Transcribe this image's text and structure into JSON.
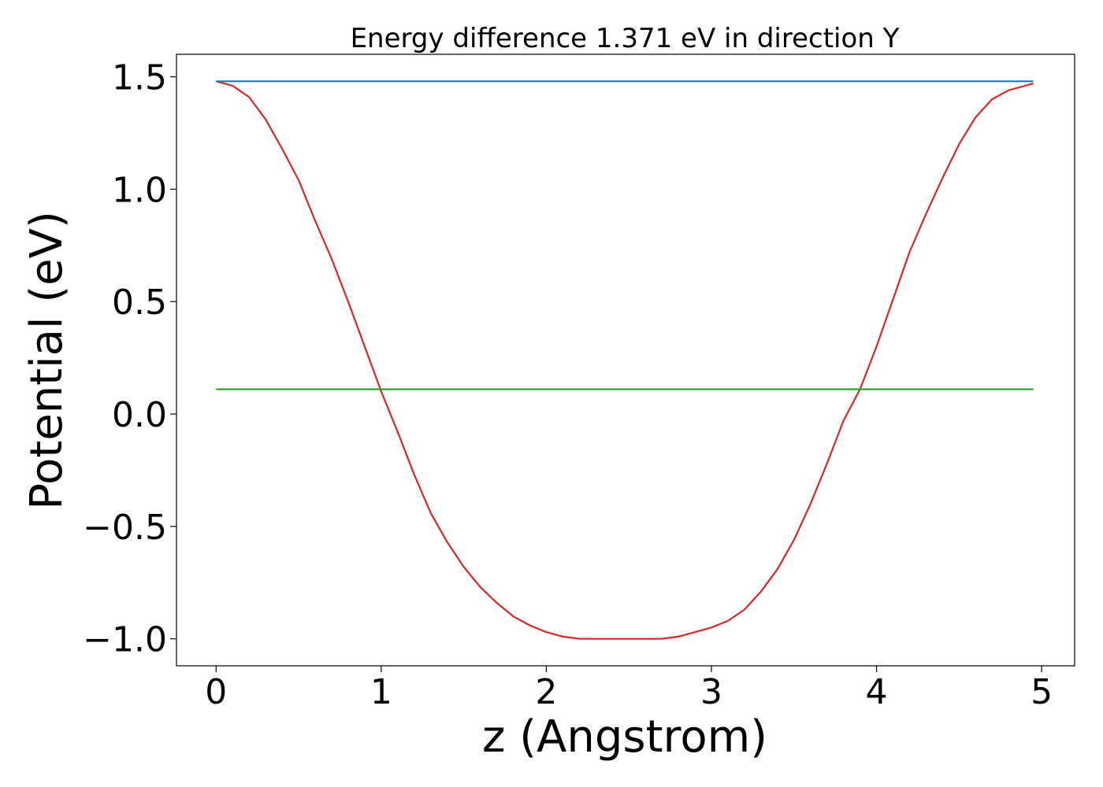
{
  "chart_data": {
    "type": "line",
    "title": "Energy difference 1.371 eV in direction Y",
    "xlabel": "z (Angstrom)",
    "ylabel": "Potential (eV)",
    "xlim": [
      -0.24,
      5.2
    ],
    "ylim": [
      -1.12,
      1.6
    ],
    "xticks": [
      {
        "value": 0,
        "label": "0"
      },
      {
        "value": 1,
        "label": "1"
      },
      {
        "value": 2,
        "label": "2"
      },
      {
        "value": 3,
        "label": "3"
      },
      {
        "value": 4,
        "label": "4"
      },
      {
        "value": 5,
        "label": "5"
      }
    ],
    "yticks": [
      {
        "value": 1.5,
        "label": "1.5"
      },
      {
        "value": 1.0,
        "label": "1.0"
      },
      {
        "value": 0.5,
        "label": "0.5"
      },
      {
        "value": 0.0,
        "label": "0.0"
      },
      {
        "value": -0.5,
        "label": "−0.5"
      },
      {
        "value": -1.0,
        "label": "−1.0"
      }
    ],
    "grid": false,
    "series": [
      {
        "color": "#d62728",
        "x": [
          0.0,
          0.1,
          0.2,
          0.3,
          0.4,
          0.5,
          0.6,
          0.7,
          0.8,
          0.9,
          1.0,
          1.1,
          1.2,
          1.3,
          1.4,
          1.5,
          1.6,
          1.7,
          1.8,
          1.9,
          2.0,
          2.1,
          2.2,
          2.3,
          2.4,
          2.5,
          2.6,
          2.7,
          2.8,
          2.9,
          3.0,
          3.1,
          3.2,
          3.3,
          3.4,
          3.5,
          3.6,
          3.7,
          3.8,
          3.9,
          4.0,
          4.1,
          4.2,
          4.3,
          4.4,
          4.5,
          4.6,
          4.7,
          4.8,
          4.9,
          4.95
        ],
        "y": [
          1.48,
          1.46,
          1.41,
          1.31,
          1.18,
          1.04,
          0.86,
          0.69,
          0.5,
          0.3,
          0.1,
          -0.08,
          -0.27,
          -0.44,
          -0.57,
          -0.68,
          -0.77,
          -0.84,
          -0.9,
          -0.94,
          -0.97,
          -0.99,
          -1.0,
          -1.0,
          -1.0,
          -1.0,
          -1.0,
          -1.0,
          -0.99,
          -0.97,
          -0.95,
          -0.92,
          -0.87,
          -0.79,
          -0.69,
          -0.56,
          -0.4,
          -0.22,
          -0.03,
          0.11,
          0.3,
          0.51,
          0.72,
          0.89,
          1.05,
          1.2,
          1.32,
          1.4,
          1.44,
          1.46,
          1.47
        ]
      },
      {
        "color": "#1f77b4",
        "x": [
          0.0,
          4.95
        ],
        "y": [
          1.48,
          1.48
        ]
      },
      {
        "color": "#2ca02c",
        "x": [
          0.0,
          4.95
        ],
        "y": [
          0.11,
          0.11
        ]
      }
    ]
  }
}
